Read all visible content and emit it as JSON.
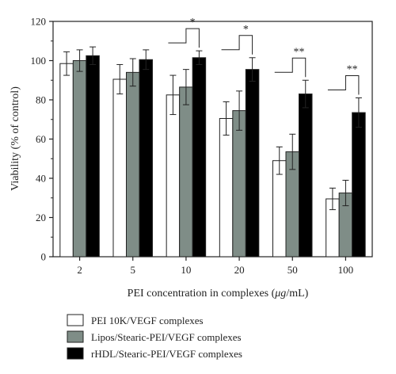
{
  "chart_data": {
    "type": "bar",
    "xlabel_prefix": "PEI concentration in complexes (",
    "xlabel_unit": "μg",
    "xlabel_suffix": "/mL)",
    "ylabel": "Viability (% of control)",
    "ylim": [
      0,
      120
    ],
    "yticks": [
      "0",
      "20",
      "40",
      "60",
      "80",
      "100",
      "120"
    ],
    "categories": [
      "2",
      "5",
      "10",
      "20",
      "50",
      "100"
    ],
    "series": [
      {
        "name": "PEI 10K/VEGF complexes",
        "color": "#ffffff",
        "values": [
          98.5,
          90.5,
          82.5,
          70.5,
          49.0,
          29.5
        ],
        "errors": [
          6,
          7.5,
          10,
          8.5,
          7,
          5.5
        ]
      },
      {
        "name": "Lipos/Stearic-PEI/VEGF complexes",
        "color": "#7f8d87",
        "values": [
          100.0,
          94.0,
          86.5,
          74.5,
          53.5,
          32.5
        ],
        "errors": [
          5.5,
          7,
          9,
          10,
          9,
          6.5
        ]
      },
      {
        "name": "rHDL/Stearic-PEI/VEGF complexes",
        "color": "#000000",
        "values": [
          102.5,
          100.5,
          101.5,
          95.5,
          83.0,
          73.5
        ],
        "errors": [
          4.5,
          5,
          3.5,
          6,
          7,
          7.5
        ]
      }
    ],
    "significance": [
      {
        "category": "10",
        "label": "*"
      },
      {
        "category": "20",
        "label": "*"
      },
      {
        "category": "50",
        "label": "**"
      },
      {
        "category": "100",
        "label": "**"
      }
    ],
    "legend_position": "bottom"
  }
}
